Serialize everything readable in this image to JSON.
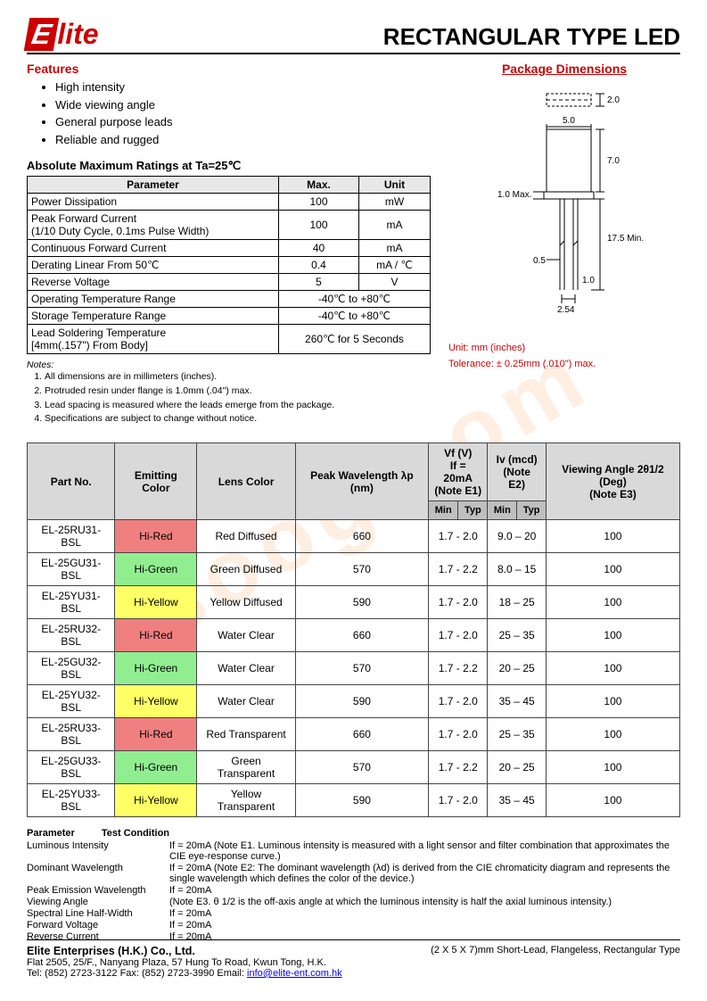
{
  "logo_text": "lite",
  "doc_title": "RECTANGULAR  TYPE  LED",
  "features_heading": "Features",
  "package_heading": "Package Dimensions",
  "features": [
    "High intensity",
    "Wide viewing angle",
    "General purpose leads",
    "Reliable and rugged"
  ],
  "ratings_title": "Absolute Maximum Ratings at Ta=25℃",
  "ratings_headers": [
    "Parameter",
    "Max.",
    "Unit"
  ],
  "ratings_rows": [
    [
      "Power Dissipation",
      "100",
      "mW"
    ],
    [
      "Peak Forward Current\n(1/10 Duty Cycle, 0.1ms Pulse Width)",
      "100",
      "mA"
    ],
    [
      "Continuous Forward Current",
      "40",
      "mA"
    ],
    [
      "Derating Linear From 50℃",
      "0.4",
      "mA / ℃"
    ],
    [
      "Reverse Voltage",
      "5",
      "V"
    ],
    [
      "Operating Temperature Range",
      "-40℃  to +80℃",
      ""
    ],
    [
      "Storage Temperature Range",
      "-40℃  to +80℃",
      ""
    ],
    [
      "Lead Soldering Temperature\n[4mm(.157\") From Body]",
      "260℃  for 5 Seconds",
      ""
    ]
  ],
  "notes_title": "Notes:",
  "notes": [
    "All dimensions are in millimeters (inches).",
    "Protruded resin under flange is 1.0mm (.04\") max.",
    "Lead spacing is measured where the leads emerge from the package.",
    "Specifications are subject to change without notice."
  ],
  "diagram": {
    "w_top": "2.0",
    "w_body": "5.0",
    "h_body": "7.0",
    "flange": "1.0 Max.",
    "lead_min": "17.5 Min.",
    "lead_off": "0.5",
    "lead_w": "1.0",
    "pitch": "2.54"
  },
  "diagram_unit": "Unit: mm (inches)",
  "diagram_tol": "Tolerance: ± 0.25mm (.010\") max.",
  "parts_headers": {
    "partno": "Part No.",
    "emitcolor": "Emitting Color",
    "lenscolor": "Lens Color",
    "peak": "Peak Wavelength λp (nm)",
    "vf": "Vf (V)\nIf = 20mA\n(Note E1)",
    "iv": "Iv (mcd)\n(Note E2)",
    "angle": "Viewing Angle 2θ1/2 (Deg)\n(Note E3)",
    "min": "Min",
    "typ": "Typ"
  },
  "parts_rows": [
    {
      "pn": "EL-25RU31-BSL",
      "ec": "Hi-Red",
      "ecClass": "hi-red",
      "lc": "Red Diffused",
      "wl": "660",
      "vf": "1.7 - 2.0",
      "iv": "9.0 – 20",
      "va": "100"
    },
    {
      "pn": "EL-25GU31-BSL",
      "ec": "Hi-Green",
      "ecClass": "hi-green",
      "lc": "Green Diffused",
      "wl": "570",
      "vf": "1.7 - 2.2",
      "iv": "8.0 – 15",
      "va": "100"
    },
    {
      "pn": "EL-25YU31-BSL",
      "ec": "Hi-Yellow",
      "ecClass": "hi-yellow",
      "lc": "Yellow Diffused",
      "wl": "590",
      "vf": "1.7 - 2.0",
      "iv": "18 – 25",
      "va": "100"
    },
    {
      "pn": "EL-25RU32-BSL",
      "ec": "Hi-Red",
      "ecClass": "hi-red",
      "lc": "Water Clear",
      "wl": "660",
      "vf": "1.7 - 2.0",
      "iv": "25 – 35",
      "va": "100"
    },
    {
      "pn": "EL-25GU32-BSL",
      "ec": "Hi-Green",
      "ecClass": "hi-green",
      "lc": "Water Clear",
      "wl": "570",
      "vf": "1.7 - 2.2",
      "iv": "20 – 25",
      "va": "100"
    },
    {
      "pn": "EL-25YU32-BSL",
      "ec": "Hi-Yellow",
      "ecClass": "hi-yellow",
      "lc": "Water Clear",
      "wl": "590",
      "vf": "1.7 - 2.0",
      "iv": "35 – 45",
      "va": "100"
    },
    {
      "pn": "EL-25RU33-BSL",
      "ec": "Hi-Red",
      "ecClass": "hi-red",
      "lc": "Red Transparent",
      "wl": "660",
      "vf": "1.7 - 2.0",
      "iv": "25 – 35",
      "va": "100"
    },
    {
      "pn": "EL-25GU33-BSL",
      "ec": "Hi-Green",
      "ecClass": "hi-green",
      "lc": "Green Transparent",
      "wl": "570",
      "vf": "1.7 - 2.2",
      "iv": "20 – 25",
      "va": "100"
    },
    {
      "pn": "EL-25YU33-BSL",
      "ec": "Hi-Yellow",
      "ecClass": "hi-yellow",
      "lc": "Yellow Transparent",
      "wl": "590",
      "vf": "1.7 - 2.0",
      "iv": "35 – 45",
      "va": "100"
    }
  ],
  "tc_param_title": "Parameter",
  "tc_cond_title": "Test Condition",
  "tc_rows": [
    {
      "label": "Luminous Intensity",
      "val": "If = 20mA (Note E1. Luminous intensity is measured with a light sensor and filter combination that approximates the CIE eye-response curve.)"
    },
    {
      "label": "Dominant Wavelength",
      "val": "If = 20mA (Note E2: The dominant wavelength (λd) is derived from the CIE chromaticity diagram and represents the single wavelength which defines the color of the device.)"
    },
    {
      "label": "Peak Emission Wavelength",
      "val": "If = 20mA"
    },
    {
      "label": "Viewing Angle",
      "val": "(Note E3.  θ 1/2 is the off-axis angle at which the luminous intensity is half the axial luminous intensity.)"
    },
    {
      "label": "Spectral Line Half-Width",
      "val": "If = 20mA"
    },
    {
      "label": "Forward Voltage",
      "val": "If = 20mA"
    },
    {
      "label": "Reverse Current",
      "val": "If = 20mA"
    }
  ],
  "footer": {
    "company": "Elite Enterprises (H.K.) Co., Ltd.",
    "spec": "(2 X 5 X 7)mm Short-Lead, Flangeless, Rectangular Type",
    "address": "Flat 2505, 25/F., Nanyang Plaza, 57 Hung To Road, Kwun Tong, H.K.",
    "contact": "Tel: (852) 2723-3122    Fax: (852) 2723-3990    Email: ",
    "email": "info@elite-ent.com.hk"
  },
  "watermark": "isoog.com",
  "colors": {
    "brand_red": "#c00",
    "hi_red": "#f08080",
    "hi_green": "#90ee90",
    "hi_yellow": "#ffff66",
    "th_bg": "#d9d9d9",
    "subhead_bg": "#bfbfbf"
  }
}
